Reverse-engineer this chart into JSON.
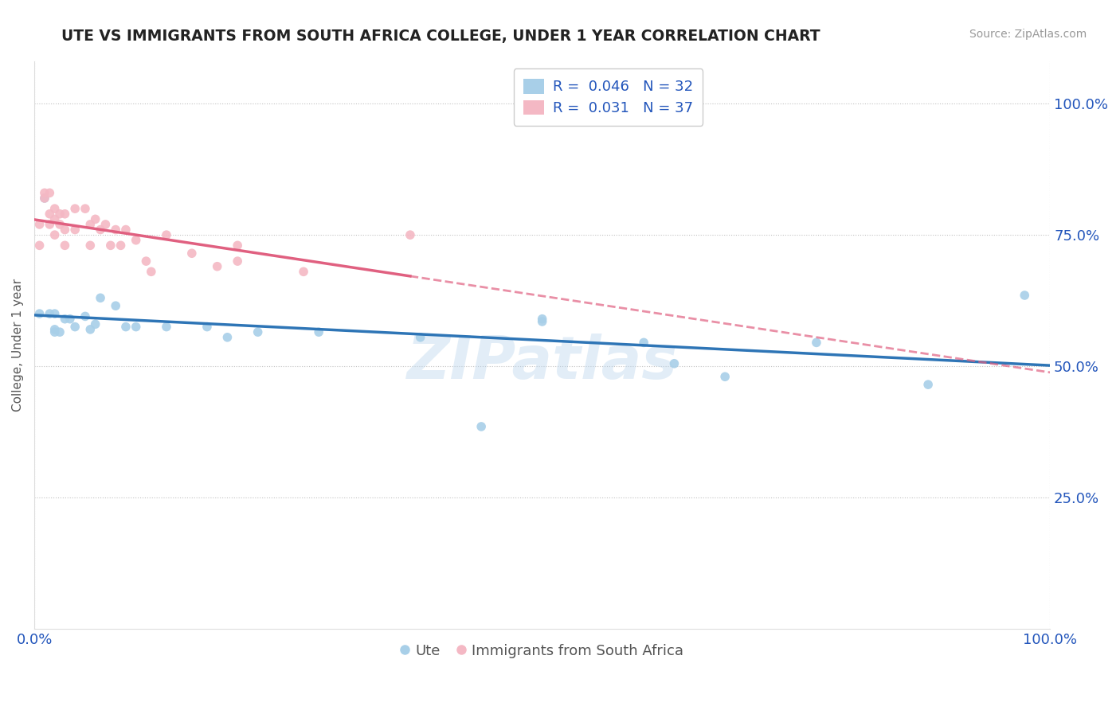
{
  "title": "UTE VS IMMIGRANTS FROM SOUTH AFRICA COLLEGE, UNDER 1 YEAR CORRELATION CHART",
  "source": "Source: ZipAtlas.com",
  "ylabel": "College, Under 1 year",
  "legend_label1": "Ute",
  "legend_label2": "Immigrants from South Africa",
  "R1": "0.046",
  "N1": "32",
  "R2": "0.031",
  "N2": "37",
  "color_blue": "#a8cfe8",
  "color_pink": "#f4b8c4",
  "color_blue_line": "#2e75b6",
  "color_pink_line": "#e06080",
  "watermark": "ZIPatlas",
  "blue_x": [
    0.005,
    0.01,
    0.015,
    0.02,
    0.02,
    0.02,
    0.025,
    0.03,
    0.035,
    0.04,
    0.05,
    0.055,
    0.06,
    0.065,
    0.08,
    0.09,
    0.1,
    0.13,
    0.17,
    0.19,
    0.22,
    0.28,
    0.38,
    0.44,
    0.5,
    0.5,
    0.6,
    0.63,
    0.68,
    0.77,
    0.88,
    0.975
  ],
  "blue_y": [
    0.6,
    0.82,
    0.6,
    0.6,
    0.57,
    0.565,
    0.565,
    0.59,
    0.59,
    0.575,
    0.595,
    0.57,
    0.58,
    0.63,
    0.615,
    0.575,
    0.575,
    0.575,
    0.575,
    0.555,
    0.565,
    0.565,
    0.555,
    0.385,
    0.59,
    0.585,
    0.545,
    0.505,
    0.48,
    0.545,
    0.465,
    0.635
  ],
  "pink_x": [
    0.005,
    0.005,
    0.01,
    0.01,
    0.015,
    0.015,
    0.015,
    0.02,
    0.02,
    0.02,
    0.025,
    0.025,
    0.03,
    0.03,
    0.03,
    0.04,
    0.04,
    0.05,
    0.055,
    0.055,
    0.06,
    0.065,
    0.07,
    0.075,
    0.08,
    0.085,
    0.09,
    0.1,
    0.11,
    0.115,
    0.13,
    0.155,
    0.18,
    0.2,
    0.2,
    0.265,
    0.37
  ],
  "pink_y": [
    0.77,
    0.73,
    0.83,
    0.82,
    0.83,
    0.79,
    0.77,
    0.8,
    0.78,
    0.75,
    0.79,
    0.77,
    0.79,
    0.76,
    0.73,
    0.8,
    0.76,
    0.8,
    0.77,
    0.73,
    0.78,
    0.76,
    0.77,
    0.73,
    0.76,
    0.73,
    0.76,
    0.74,
    0.7,
    0.68,
    0.75,
    0.715,
    0.69,
    0.73,
    0.7,
    0.68,
    0.75
  ],
  "xlim": [
    0,
    1.0
  ],
  "ylim": [
    0,
    1.08
  ],
  "ytick_values": [
    0.25,
    0.5,
    0.75,
    1.0
  ],
  "ytick_labels": [
    "25.0%",
    "50.0%",
    "75.0%",
    "100.0%"
  ],
  "xtick_values": [
    0.0,
    1.0
  ],
  "xtick_labels": [
    "0.0%",
    "100.0%"
  ]
}
